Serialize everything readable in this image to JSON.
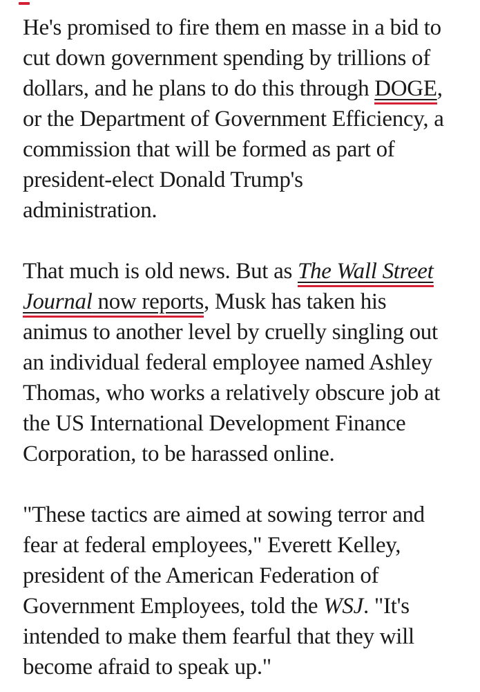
{
  "page": {
    "background_color": "#ffffff",
    "text_color": "#1a1a1a",
    "link_underline_color": "#d41f35",
    "top_edge_artifact": "truncated-link-underline-fragment"
  },
  "article": {
    "paragraphs": [
      {
        "lines": [
          {
            "segments": [
              {
                "text": "He's promised to fire them en masse in a bid to"
              }
            ]
          },
          {
            "segments": [
              {
                "text": "cut down government spending by trillions of"
              }
            ]
          },
          {
            "segments": [
              {
                "text": "dollars, and he plans to do this through "
              },
              {
                "text": "DOGE",
                "style": "link",
                "name": "doge-link"
              },
              {
                "text": ","
              }
            ]
          },
          {
            "segments": [
              {
                "text": "or the Department of Government Efficiency, a"
              }
            ]
          },
          {
            "segments": [
              {
                "text": "commission that will be formed as part of"
              }
            ]
          },
          {
            "segments": [
              {
                "text": "president-elect Donald Trump's"
              }
            ]
          },
          {
            "segments": [
              {
                "text": "administration."
              }
            ]
          }
        ]
      },
      {
        "lines": [
          {
            "segments": [
              {
                "text": "That much is old news. But as "
              },
              {
                "text": "The Wall Street",
                "style": "link-italic",
                "name": "wsj-report-link"
              }
            ]
          },
          {
            "segments": [
              {
                "text": "Journal",
                "style": "link-italic",
                "name": "wsj-report-link"
              },
              {
                "text": " now reports",
                "style": "link",
                "name": "wsj-report-link"
              },
              {
                "text": ", Musk has taken his"
              }
            ]
          },
          {
            "segments": [
              {
                "text": "animus to another level by cruelly singling out"
              }
            ]
          },
          {
            "segments": [
              {
                "text": "an individual federal employee named Ashley"
              }
            ]
          },
          {
            "segments": [
              {
                "text": "Thomas, who works a relatively obscure job at"
              }
            ]
          },
          {
            "segments": [
              {
                "text": "the US International Development Finance"
              }
            ]
          },
          {
            "segments": [
              {
                "text": "Corporation, to be harassed online."
              }
            ]
          }
        ]
      },
      {
        "lines": [
          {
            "segments": [
              {
                "text": "\"These tactics are aimed at sowing terror and"
              }
            ]
          },
          {
            "segments": [
              {
                "text": "fear at federal employees,\" Everett Kelley,"
              }
            ]
          },
          {
            "segments": [
              {
                "text": "president of the American Federation of"
              }
            ]
          },
          {
            "segments": [
              {
                "text": "Government Employees, told the "
              },
              {
                "text": "WSJ",
                "style": "italic",
                "name": "wsj-publication-name"
              },
              {
                "text": ". \"It's"
              }
            ]
          },
          {
            "segments": [
              {
                "text": "intended to make them fearful that they will"
              }
            ]
          },
          {
            "segments": [
              {
                "text": "become afraid to speak up.\""
              }
            ]
          }
        ]
      }
    ]
  }
}
